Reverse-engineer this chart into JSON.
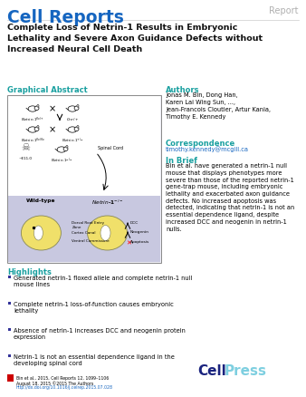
{
  "title_journal": "Cell Reports",
  "title_type": "Report",
  "title_main": "Complete Loss of Netrin-1 Results in Embryonic\nLethality and Severe Axon Guidance Defects without\nIncreased Neural Cell Death",
  "section_graphical": "Graphical Abstract",
  "section_authors": "Authors",
  "authors_text": "Jonas M. Bin, Dong Han,\nKaren Lai Wing Sun, ...,\nJean-Francois Cloutier, Artur Kania,\nTimothy E. Kennedy",
  "section_correspondence": "Correspondence",
  "correspondence_text": "timothy.kennedy@mcgill.ca",
  "section_inbrief": "In Brief",
  "inbrief_text": "Bin et al. have generated a netrin-1 null\nmouse that displays phenotypes more\nsevere than those of the reported netrin-1\ngene-trap mouse, including embryonic\nlethality and exacerbated axon guidance\ndefects. No increased apoptosis was\ndetected, indicating that netrin-1 is not an\nessential dependence ligand, despite\nincreased DCC and neogenin in netrin-1\nnulls.",
  "section_highlights": "Highlights",
  "highlights": [
    "Generated netrin-1 floxed allele and complete netrin-1 null\nmouse lines",
    "Complete netrin-1 loss-of-function causes embryonic\nlethality",
    "Absence of netrin-1 increases DCC and neogenin protein\nexpression",
    "Netrin-1 is not an essential dependence ligand in the\ndeveloping spinal cord"
  ],
  "footer_line1": "Bin et al., 2015, Cell Reports 12, 1099–1106",
  "footer_line2": "August 18, 2015 ©2015 The Authors",
  "footer_link": "http://dx.doi.org/10.1016/j.celrep.2015.07.028",
  "color_journal_blue": "#1565C0",
  "color_report_gray": "#B0B0B0",
  "color_section_teal": "#1AA0A0",
  "color_black": "#111111",
  "color_link_blue": "#1565C0",
  "color_cellpress_dark": "#1A237E",
  "color_cellpress_light": "#7ECFE0",
  "background_color": "#FFFFFF"
}
